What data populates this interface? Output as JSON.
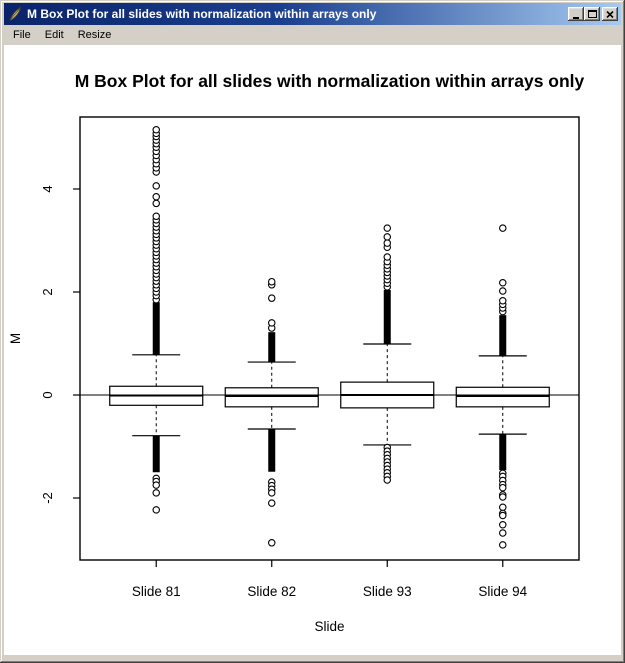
{
  "window": {
    "title": "M Box Plot for all slides with normalization within arrays only",
    "icon": "feather-quill",
    "buttons": {
      "minimize": "_",
      "maximize": "[]",
      "close": "x"
    }
  },
  "menu": {
    "items": [
      {
        "label": "File"
      },
      {
        "label": "Edit"
      },
      {
        "label": "Resize"
      }
    ]
  },
  "colors": {
    "titlebar_left": "#0a246a",
    "titlebar_right": "#a6caf0",
    "chrome_gray": "#d4d0c8",
    "plot_background": "#ffffff",
    "plot_foreground": "#000000"
  },
  "chart_data": {
    "type": "boxplot",
    "title": "M Box Plot for all slides with normalization within arrays only",
    "xlabel": "Slide",
    "ylabel": "M",
    "categories": [
      "Slide 81",
      "Slide 82",
      "Slide 93",
      "Slide 94"
    ],
    "yticks": [
      -2,
      0,
      2,
      4
    ],
    "ylim": [
      -3.2,
      5.45
    ],
    "reference_line_y": 0,
    "grid": false,
    "legend": "none",
    "boxes": [
      {
        "label": "Slide 81",
        "q1": -0.2,
        "median": -0.01,
        "q3": 0.17,
        "whisker_low": -0.79,
        "whisker_high": 0.78,
        "dense_outlier_range_high": [
          0.78,
          1.8
        ],
        "dense_outlier_range_low": [
          -1.5,
          -0.79
        ],
        "outliers_high": [
          1.85,
          1.93,
          2.0,
          2.07,
          2.14,
          2.21,
          2.28,
          2.35,
          2.42,
          2.49,
          2.56,
          2.63,
          2.7,
          2.77,
          2.84,
          2.91,
          2.98,
          3.05,
          3.12,
          3.19,
          3.26,
          3.33,
          3.4,
          3.47,
          3.72,
          3.85,
          4.06,
          4.33,
          4.41,
          4.49,
          4.57,
          4.65,
          4.73,
          4.81,
          4.88,
          4.95,
          5.02,
          5.08,
          5.15
        ],
        "outliers_low": [
          -1.62,
          -1.68,
          -1.75,
          -1.9,
          -2.23
        ]
      },
      {
        "label": "Slide 82",
        "q1": -0.23,
        "median": -0.02,
        "q3": 0.14,
        "whisker_low": -0.66,
        "whisker_high": 0.64,
        "dense_outlier_range_high": [
          0.64,
          1.22
        ],
        "dense_outlier_range_low": [
          -1.49,
          -0.66
        ],
        "outliers_high": [
          1.3,
          1.4,
          1.88,
          2.14,
          2.2
        ],
        "outliers_low": [
          -1.69,
          -1.76,
          -1.83,
          -1.9,
          -2.1,
          -2.87
        ]
      },
      {
        "label": "Slide 93",
        "q1": -0.25,
        "median": 0.0,
        "q3": 0.25,
        "whisker_low": -0.97,
        "whisker_high": 0.99,
        "dense_outlier_range_high": [
          0.99,
          2.04
        ],
        "dense_outlier_range_low": null,
        "outliers_high": [
          2.1,
          2.17,
          2.24,
          2.31,
          2.38,
          2.45,
          2.52,
          2.59,
          2.68,
          2.87,
          2.95,
          3.07,
          3.24
        ],
        "outliers_low": [
          -1.02,
          -1.09,
          -1.16,
          -1.23,
          -1.3,
          -1.37,
          -1.44,
          -1.51,
          -1.58,
          -1.65
        ]
      },
      {
        "label": "Slide 94",
        "q1": -0.23,
        "median": -0.02,
        "q3": 0.15,
        "whisker_low": -0.76,
        "whisker_high": 0.76,
        "dense_outlier_range_high": [
          0.76,
          1.55
        ],
        "dense_outlier_range_low": [
          -1.46,
          -0.76
        ],
        "outliers_high": [
          1.62,
          1.69,
          1.76,
          1.83,
          2.02,
          2.18,
          3.24
        ],
        "outliers_low": [
          -1.52,
          -1.58,
          -1.66,
          -1.74,
          -1.8,
          -1.94,
          -1.98,
          -2.18,
          -2.3,
          -2.34,
          -2.52,
          -2.68,
          -2.91
        ]
      }
    ]
  }
}
